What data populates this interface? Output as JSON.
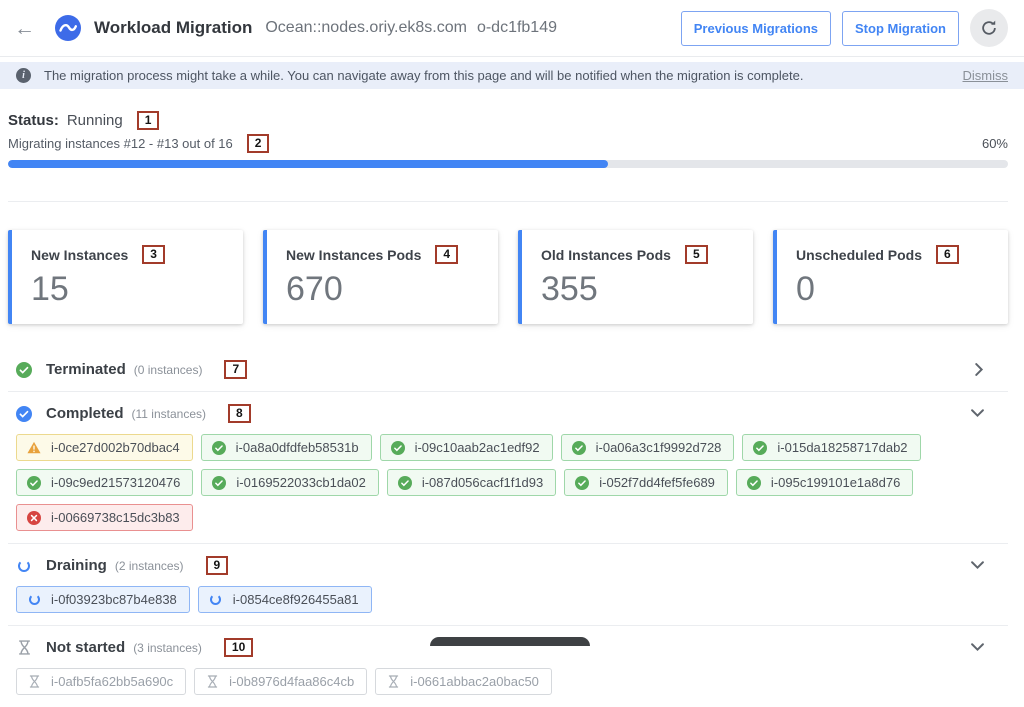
{
  "header": {
    "title": "Workload Migration",
    "cluster": "Ocean::nodes.oriy.ek8s.com",
    "ocean_id": "o-dc1fb149",
    "previous_button": "Previous Migrations",
    "stop_button": "Stop Migration"
  },
  "banner": {
    "text": "The migration process might take a while. You can navigate away from this page and will be notified when the migration is complete.",
    "dismiss": "Dismiss"
  },
  "status": {
    "label": "Status:",
    "value": "Running",
    "annotation": "1",
    "progress_text": "Migrating instances #12 - #13 out of 16",
    "progress_annotation": "2",
    "progress_percent_label": "60%",
    "progress_value": 60
  },
  "cards": [
    {
      "label": "New Instances",
      "value": "15",
      "annotation": "3"
    },
    {
      "label": "New Instances Pods",
      "value": "670",
      "annotation": "4"
    },
    {
      "label": "Old Instances Pods",
      "value": "355",
      "annotation": "5"
    },
    {
      "label": "Unscheduled Pods",
      "value": "0",
      "annotation": "6"
    }
  ],
  "sections": {
    "terminated": {
      "title": "Terminated",
      "count": "(0 instances)",
      "annotation": "7",
      "state": "collapsed"
    },
    "completed": {
      "title": "Completed",
      "count": "(11 instances)",
      "annotation": "8",
      "state": "expanded",
      "chips": [
        {
          "id": "i-0ce27d002b70dbac4",
          "status": "warning"
        },
        {
          "id": "i-0a8a0dfdfeb58531b",
          "status": "success"
        },
        {
          "id": "i-09c10aab2ac1edf92",
          "status": "success"
        },
        {
          "id": "i-0a06a3c1f9992d728",
          "status": "success"
        },
        {
          "id": "i-015da18258717dab2",
          "status": "success"
        },
        {
          "id": "i-09c9ed21573120476",
          "status": "success"
        },
        {
          "id": "i-0169522033cb1da02",
          "status": "success"
        },
        {
          "id": "i-087d056cacf1f1d93",
          "status": "success"
        },
        {
          "id": "i-052f7dd4fef5fe689",
          "status": "success"
        },
        {
          "id": "i-095c199101e1a8d76",
          "status": "success"
        },
        {
          "id": "i-00669738c15dc3b83",
          "status": "error"
        }
      ]
    },
    "draining": {
      "title": "Draining",
      "count": "(2 instances)",
      "annotation": "9",
      "state": "expanded",
      "chips": [
        {
          "id": "i-0f03923bc87b4e838",
          "status": "draining"
        },
        {
          "id": "i-0854ce8f926455a81",
          "status": "draining"
        }
      ]
    },
    "not_started": {
      "title": "Not started",
      "count": "(3 instances)",
      "annotation": "10",
      "state": "expanded",
      "chips": [
        {
          "id": "i-0afb5fa62bb5a690c",
          "status": "pending"
        },
        {
          "id": "i-0b8976d4faa86c4cb",
          "status": "pending"
        },
        {
          "id": "i-0661abbac2a0bac50",
          "status": "pending"
        }
      ]
    }
  },
  "icons": {
    "back": "arrow-left",
    "logo": "ocean-wave",
    "info": "info-circle",
    "refresh": "refresh-arrow",
    "terminated": "check-circle-green",
    "completed": "check-circle-blue",
    "draining": "spinner-blue",
    "not_started": "hourglass-gray",
    "chip_warning": "warning-triangle",
    "chip_error": "x-circle-red",
    "collapsed": "chevron-right",
    "expanded": "chevron-down"
  },
  "colors": {
    "accent_blue": "#4285f4",
    "success_green": "#57ab5a",
    "warning_orange": "#e8a13c",
    "error_red": "#d64541",
    "annotation_border": "#a23b2a",
    "banner_bg": "#e9eef9"
  }
}
